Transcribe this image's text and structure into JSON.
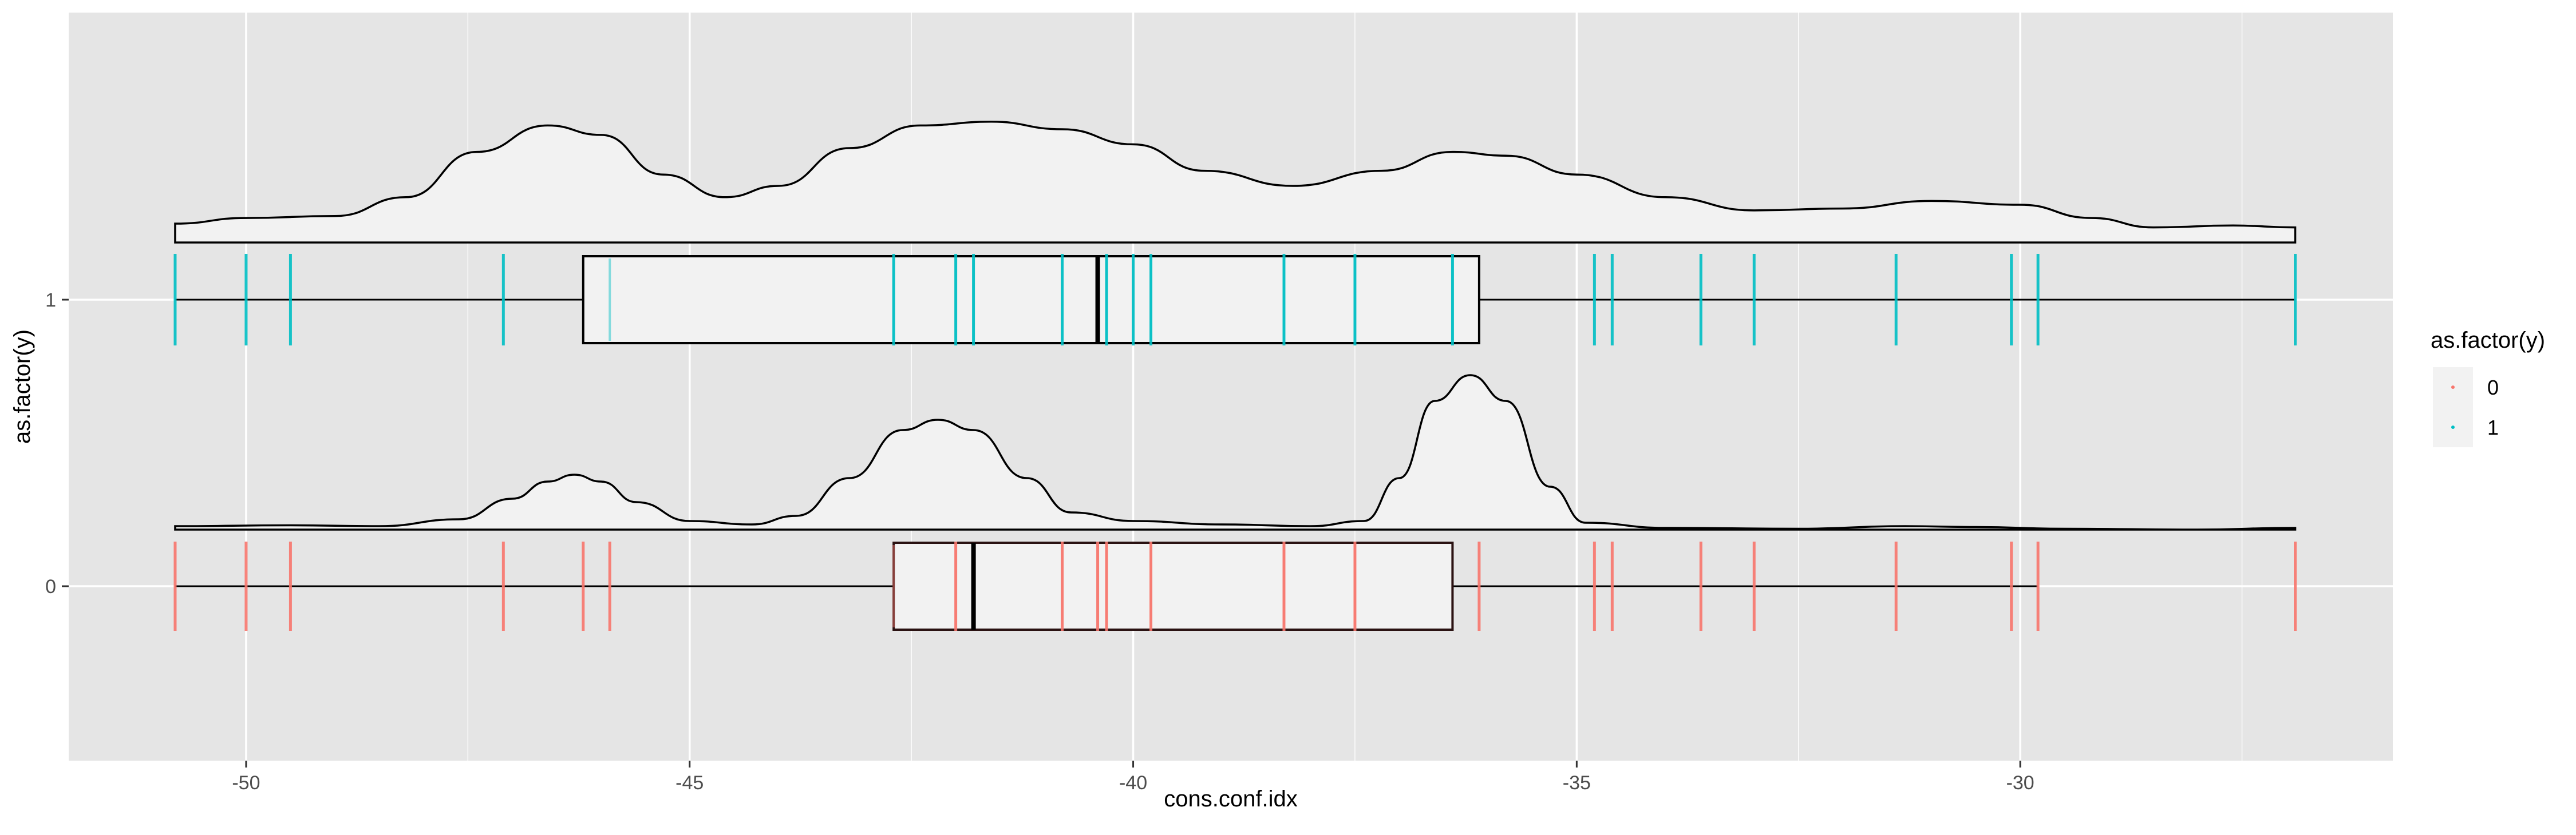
{
  "chart_data": {
    "type": "box-density-rug",
    "xlabel": "cons.conf.idx",
    "ylabel": "as.factor(y)",
    "xlim": [
      -52,
      -25.8
    ],
    "x_ticks": [
      -50,
      -45,
      -40,
      -35,
      -30
    ],
    "x_tick_labels": [
      "-50",
      "-45",
      "-40",
      "-35",
      "-30"
    ],
    "y_categories": [
      "0",
      "1"
    ],
    "y_tick_labels": [
      "0",
      "1"
    ],
    "legend": {
      "title": "as.factor(y)",
      "placement": "right",
      "entries": [
        {
          "label": "0",
          "color": "#F8766D"
        },
        {
          "label": "1",
          "color": "#00BFC4"
        }
      ]
    },
    "colors": {
      "panel_bg": "#E5E5E5",
      "grid": "#FFFFFF",
      "box_fill": "#F2F2F2",
      "class0": "#F8766D",
      "class1": "#00BFC4"
    },
    "grid": true,
    "series": [
      {
        "name": "0",
        "boxplot": {
          "min": -50.8,
          "q1": -42.7,
          "median": -41.8,
          "q3": -36.4,
          "max": -29.8,
          "outliers": [
            -26.9
          ]
        },
        "density": [
          [
            -50.8,
            0.02
          ],
          [
            -49.5,
            0.025
          ],
          [
            -48.5,
            0.02
          ],
          [
            -47.6,
            0.06
          ],
          [
            -47,
            0.18
          ],
          [
            -46.6,
            0.28
          ],
          [
            -46.3,
            0.32
          ],
          [
            -46,
            0.28
          ],
          [
            -45.6,
            0.16
          ],
          [
            -45,
            0.05
          ],
          [
            -44.3,
            0.03
          ],
          [
            -43.8,
            0.08
          ],
          [
            -43.2,
            0.3
          ],
          [
            -42.6,
            0.58
          ],
          [
            -42.2,
            0.64
          ],
          [
            -41.8,
            0.58
          ],
          [
            -41.2,
            0.3
          ],
          [
            -40.7,
            0.1
          ],
          [
            -40,
            0.05
          ],
          [
            -39,
            0.03
          ],
          [
            -38,
            0.02
          ],
          [
            -37.4,
            0.05
          ],
          [
            -37,
            0.3
          ],
          [
            -36.6,
            0.75
          ],
          [
            -36.2,
            0.9
          ],
          [
            -35.8,
            0.75
          ],
          [
            -35.3,
            0.25
          ],
          [
            -34.9,
            0.04
          ],
          [
            -34,
            0.01
          ],
          [
            -32.5,
            0.005
          ],
          [
            -31.3,
            0.02
          ],
          [
            -30.5,
            0.015
          ],
          [
            -29.5,
            0.005
          ],
          [
            -28,
            0.0
          ],
          [
            -26.9,
            0.01
          ]
        ],
        "rug": [
          -50.8,
          -50,
          -49.5,
          -47.1,
          -46.2,
          -45.9,
          -42.0,
          -40.8,
          -40.4,
          -40.3,
          -39.8,
          -38.3,
          -37.5,
          -36.1,
          -34.8,
          -34.6,
          -33.6,
          -33.0,
          -31.4,
          -30.1,
          -29.8,
          -26.9
        ],
        "points": [
          -42.7,
          -42.0,
          -40.8,
          -40.4,
          -40.3,
          -39.8,
          -38.3,
          -37.5
        ]
      },
      {
        "name": "1",
        "boxplot": {
          "min": -50.8,
          "q1": -46.2,
          "median": -40.4,
          "q3": -36.1,
          "max": -26.9,
          "outliers": []
        },
        "density": [
          [
            -50.8,
            0.1
          ],
          [
            -50,
            0.13
          ],
          [
            -49,
            0.14
          ],
          [
            -48.2,
            0.24
          ],
          [
            -47.4,
            0.48
          ],
          [
            -46.6,
            0.62
          ],
          [
            -46,
            0.57
          ],
          [
            -45.3,
            0.36
          ],
          [
            -44.6,
            0.24
          ],
          [
            -44,
            0.3
          ],
          [
            -43.2,
            0.5
          ],
          [
            -42.4,
            0.62
          ],
          [
            -41.6,
            0.64
          ],
          [
            -40.8,
            0.6
          ],
          [
            -40,
            0.52
          ],
          [
            -39.2,
            0.38
          ],
          [
            -38.2,
            0.3
          ],
          [
            -37.2,
            0.38
          ],
          [
            -36.4,
            0.48
          ],
          [
            -35.8,
            0.46
          ],
          [
            -35,
            0.36
          ],
          [
            -34,
            0.24
          ],
          [
            -33,
            0.17
          ],
          [
            -32,
            0.18
          ],
          [
            -31,
            0.22
          ],
          [
            -30,
            0.2
          ],
          [
            -29.2,
            0.13
          ],
          [
            -28.5,
            0.08
          ],
          [
            -27.6,
            0.09
          ],
          [
            -26.9,
            0.08
          ]
        ],
        "rug": [
          -50.8,
          -50,
          -49.5,
          -47.1,
          -42.7,
          -42.0,
          -41.8,
          -40.8,
          -40.3,
          -40.0,
          -39.8,
          -38.3,
          -37.5,
          -36.4,
          -34.8,
          -34.6,
          -33.6,
          -33.0,
          -31.4,
          -30.1,
          -29.8,
          -26.9
        ],
        "points": [
          -42.7,
          -42.0,
          -41.8,
          -40.8,
          -40.3,
          -40.0,
          -39.8,
          -38.3,
          -37.5,
          -36.4,
          -45.9
        ]
      }
    ]
  }
}
